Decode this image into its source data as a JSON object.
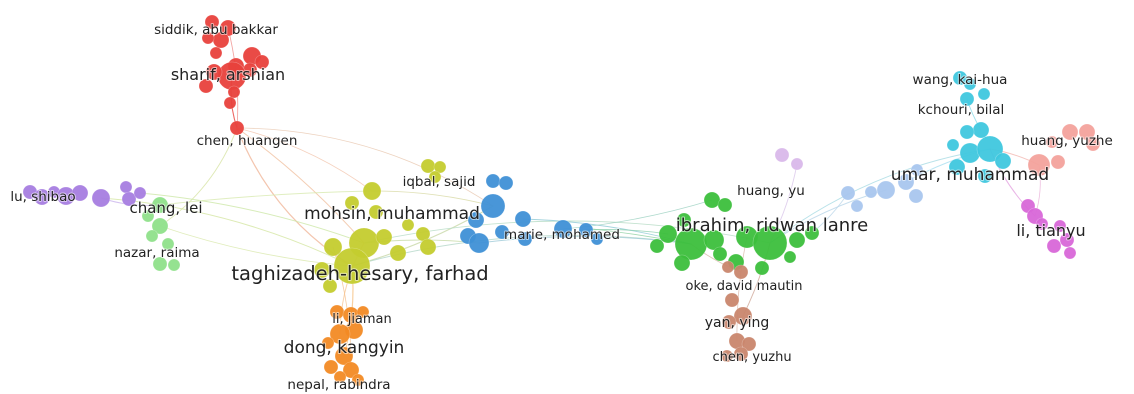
{
  "network": {
    "clusters": [
      {
        "id": "red",
        "color": "#e8413c"
      },
      {
        "id": "purple",
        "color": "#a77de0"
      },
      {
        "id": "light-green",
        "color": "#8fe08a"
      },
      {
        "id": "yellow-green",
        "color": "#c4cc2e"
      },
      {
        "id": "orange",
        "color": "#f28a24"
      },
      {
        "id": "blue",
        "color": "#3f90d6"
      },
      {
        "id": "green",
        "color": "#3cbf3c"
      },
      {
        "id": "brown",
        "color": "#c9866d"
      },
      {
        "id": "light-blue",
        "color": "#a9c6ee"
      },
      {
        "id": "lavender",
        "color": "#d9b8ea"
      },
      {
        "id": "cyan",
        "color": "#3fc7de"
      },
      {
        "id": "salmon",
        "color": "#f3a29c"
      },
      {
        "id": "magenta",
        "color": "#d867d8"
      }
    ],
    "labels": [
      {
        "key": "siddik",
        "text": "siddik, abu bakkar"
      },
      {
        "key": "sharif",
        "text": "sharif, arshian"
      },
      {
        "key": "chen-huangen",
        "text": "chen, huangen"
      },
      {
        "key": "lu-shibao",
        "text": "lu, shibao"
      },
      {
        "key": "chang-lei",
        "text": "chang, lei"
      },
      {
        "key": "nazar",
        "text": "nazar, raima"
      },
      {
        "key": "iqbal",
        "text": "iqbal, sajid"
      },
      {
        "key": "mohsin",
        "text": "mohsin, muhammad"
      },
      {
        "key": "taghizadeh",
        "text": "taghizadeh-hesary, farhad"
      },
      {
        "key": "marie",
        "text": "marie, mohamed"
      },
      {
        "key": "li-jiaman",
        "text": "li, jiaman"
      },
      {
        "key": "dong",
        "text": "dong, kangyin"
      },
      {
        "key": "nepal",
        "text": "nepal, rabindra"
      },
      {
        "key": "ibrahim",
        "text": "ibrahim, ridwan lanre"
      },
      {
        "key": "huang-yu",
        "text": "huang, yu"
      },
      {
        "key": "oke",
        "text": "oke, david mautin"
      },
      {
        "key": "yan",
        "text": "yan, ying"
      },
      {
        "key": "chen-yuzhu",
        "text": "chen, yuzhu"
      },
      {
        "key": "wang",
        "text": "wang, kai-hua"
      },
      {
        "key": "kchouri",
        "text": "kchouri, bilal"
      },
      {
        "key": "umar",
        "text": "umar, muhammad"
      },
      {
        "key": "huang-yuzhe",
        "text": "huang, yuzhe"
      },
      {
        "key": "li-tianyu",
        "text": "li, tianyu"
      }
    ]
  }
}
